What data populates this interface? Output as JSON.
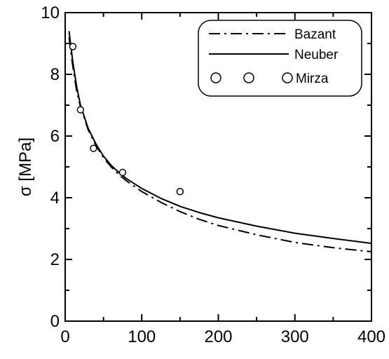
{
  "chart_data": {
    "type": "line",
    "title": "",
    "xlabel": "",
    "ylabel": "σ  [MPa]",
    "xlim": [
      0,
      400
    ],
    "ylim": [
      0,
      10
    ],
    "xticks": [
      0,
      100,
      200,
      300,
      400
    ],
    "yticks": [
      0,
      2,
      4,
      6,
      8,
      10
    ],
    "xtick_labels": [
      "0",
      "100",
      "200",
      "300",
      "400"
    ],
    "ytick_labels": [
      "0",
      "2",
      "4",
      "6",
      "8",
      "10"
    ],
    "grid": false,
    "legend": {
      "position": "top-right"
    },
    "series": [
      {
        "name": "Bazant",
        "type": "line",
        "style": "dash-dot",
        "x": [
          5,
          10,
          15,
          20,
          30,
          40,
          50,
          60,
          70,
          80,
          100,
          125,
          150,
          175,
          200,
          250,
          300,
          350,
          400
        ],
        "y": [
          9.2,
          8.25,
          7.45,
          6.95,
          6.2,
          5.7,
          5.3,
          5.0,
          4.75,
          4.55,
          4.2,
          3.85,
          3.55,
          3.3,
          3.1,
          2.8,
          2.55,
          2.38,
          2.25
        ]
      },
      {
        "name": "Neuber",
        "type": "line",
        "style": "solid",
        "x": [
          5,
          10,
          15,
          20,
          30,
          40,
          50,
          60,
          70,
          80,
          100,
          125,
          150,
          175,
          200,
          250,
          300,
          350,
          400
        ],
        "y": [
          9.4,
          8.4,
          7.6,
          7.0,
          6.25,
          5.75,
          5.35,
          5.05,
          4.82,
          4.62,
          4.3,
          3.98,
          3.72,
          3.52,
          3.35,
          3.08,
          2.85,
          2.68,
          2.52
        ]
      },
      {
        "name": "Mirza",
        "type": "scatter",
        "marker": "open-circle",
        "x": [
          10,
          20,
          37,
          75,
          150
        ],
        "y": [
          8.9,
          6.85,
          5.6,
          4.82,
          4.2
        ]
      }
    ]
  }
}
